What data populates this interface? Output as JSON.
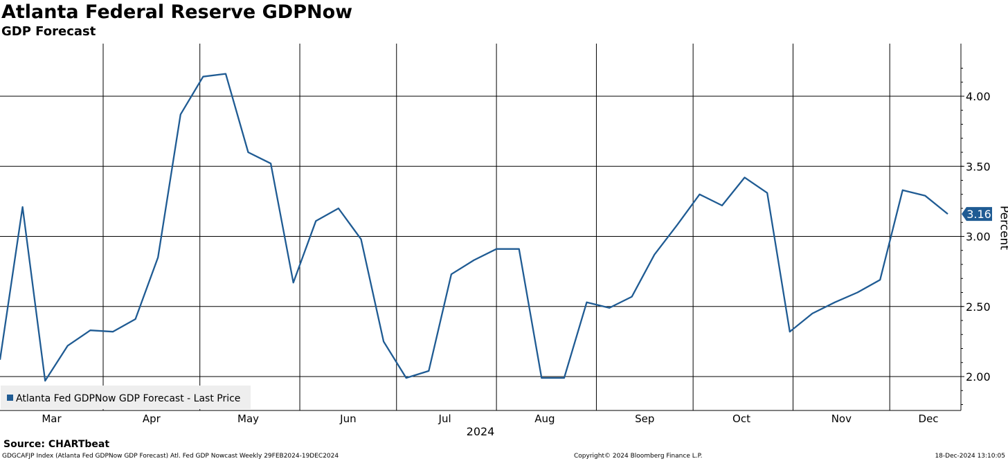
{
  "header": {
    "title": "Atlanta Federal Reserve GDPNow",
    "subtitle": "GDP Forecast"
  },
  "footer": {
    "source": "Source: CHARTbeat",
    "index_note": "GDGCAFJP Index (Atlanta Fed GDPNow GDP Forecast) Atl. Fed GDP Nowcast  Weekly 29FEB2024-19DEC2024",
    "copyright": "Copyright© 2024 Bloomberg Finance L.P.",
    "timestamp": "18-Dec-2024 13:10:05"
  },
  "colors": {
    "line": "#1f5b93",
    "grid": "#000000",
    "legend_bg": "#eeeeee",
    "label_bg": "#1f5b93"
  },
  "chart_data": {
    "type": "line",
    "title": "Atlanta Federal Reserve GDPNow",
    "subtitle": "GDP Forecast",
    "ylabel": "Percent",
    "xlabel": "2024",
    "ylim": [
      1.75,
      4.25
    ],
    "y_ticks": [
      "2.00",
      "2.50",
      "3.00",
      "3.50",
      "4.00"
    ],
    "x_ticks": [
      "Mar",
      "Apr",
      "May",
      "Jun",
      "Jul",
      "Aug",
      "Sep",
      "Oct",
      "Nov",
      "Dec"
    ],
    "grid": true,
    "legend_position": "bottom-left",
    "last_value_label": "3.16",
    "series": [
      {
        "name": "Atlanta Fed GDPNow GDP Forecast - Last Price",
        "x": [
          "2024-02-29",
          "2024-03-07",
          "2024-03-14",
          "2024-03-21",
          "2024-03-28",
          "2024-04-04",
          "2024-04-11",
          "2024-04-18",
          "2024-04-25",
          "2024-05-02",
          "2024-05-09",
          "2024-05-16",
          "2024-05-23",
          "2024-05-30",
          "2024-06-06",
          "2024-06-13",
          "2024-06-20",
          "2024-06-27",
          "2024-07-04",
          "2024-07-11",
          "2024-07-18",
          "2024-07-25",
          "2024-08-01",
          "2024-08-08",
          "2024-08-15",
          "2024-08-22",
          "2024-08-29",
          "2024-09-05",
          "2024-09-12",
          "2024-09-19",
          "2024-09-26",
          "2024-10-03",
          "2024-10-10",
          "2024-10-17",
          "2024-10-24",
          "2024-10-31",
          "2024-11-07",
          "2024-11-14",
          "2024-11-21",
          "2024-11-28",
          "2024-12-05",
          "2024-12-12",
          "2024-12-19"
        ],
        "values": [
          2.12,
          3.21,
          1.97,
          2.22,
          2.33,
          2.32,
          2.41,
          2.85,
          3.87,
          4.14,
          4.16,
          3.6,
          3.52,
          2.67,
          3.11,
          3.2,
          2.98,
          2.25,
          1.99,
          2.04,
          2.73,
          2.83,
          2.91,
          2.91,
          1.99,
          1.99,
          2.53,
          2.49,
          2.57,
          2.87,
          3.08,
          3.3,
          3.22,
          3.42,
          3.31,
          2.32,
          2.45,
          2.53,
          2.6,
          2.69,
          3.33,
          3.29,
          3.16
        ]
      }
    ]
  }
}
